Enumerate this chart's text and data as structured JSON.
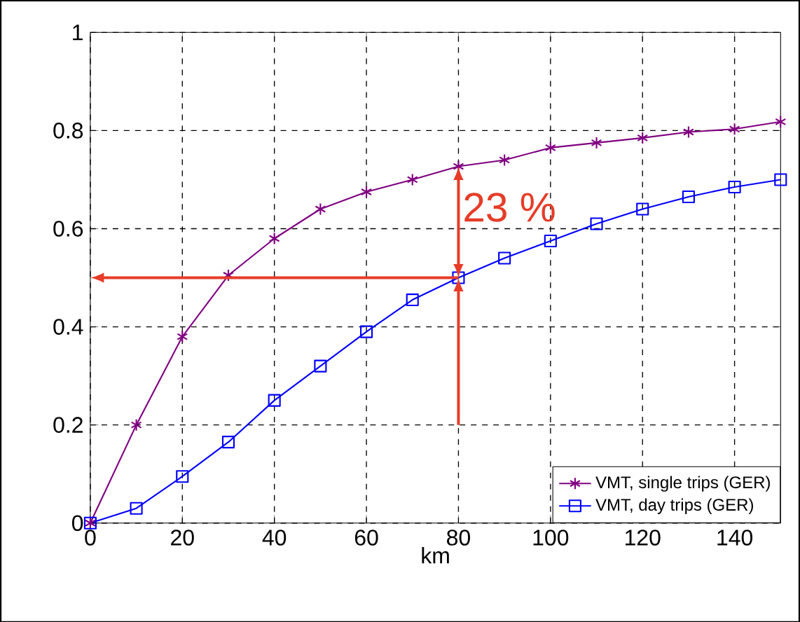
{
  "chart_data": {
    "type": "line",
    "xlabel": "km",
    "xlim": [
      0,
      150
    ],
    "xticks": [
      0,
      20,
      40,
      60,
      80,
      100,
      120,
      140
    ],
    "ylim": [
      0,
      1
    ],
    "yticks": [
      0,
      0.2,
      0.4,
      0.6,
      0.8,
      1
    ],
    "grid": true,
    "legend": "bottom right",
    "line_style": "solid",
    "x": [
      0,
      10,
      20,
      30,
      40,
      50,
      60,
      70,
      80,
      90,
      100,
      110,
      120,
      130,
      140,
      150
    ],
    "series": [
      {
        "name": "VMT, single trips (GER)",
        "color": "#800080",
        "marker": "cross",
        "values": [
          0,
          0.2,
          0.38,
          0.505,
          0.58,
          0.64,
          0.675,
          0.7,
          0.727,
          0.74,
          0.765,
          0.775,
          0.785,
          0.797,
          0.803,
          0.818
        ]
      },
      {
        "name": "VMT, day trips (GER)",
        "color": "#0000ff",
        "marker": "square",
        "values": [
          0,
          0.03,
          0.095,
          0.165,
          0.25,
          0.32,
          0.39,
          0.455,
          0.5,
          0.54,
          0.575,
          0.61,
          0.64,
          0.665,
          0.685,
          0.7
        ]
      }
    ],
    "ref_lines": [
      {
        "axis": "x",
        "value": 80,
        "color": "#e63c28"
      },
      {
        "axis": "y",
        "value": 0.5,
        "color": "#e63c28"
      }
    ],
    "annotations": [
      "23 %"
    ]
  }
}
